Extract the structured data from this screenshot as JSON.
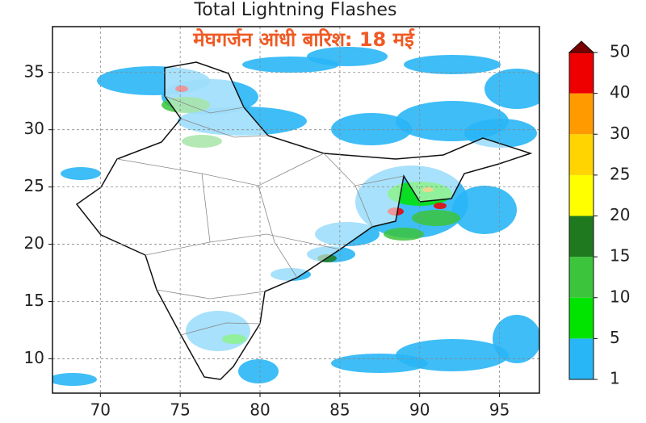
{
  "title": "Total Lightning Flashes",
  "annotation": "मेघगर्जन आंधी बारिश: 18 मई",
  "map": {
    "xlim": [
      67,
      97.5
    ],
    "ylim": [
      7,
      39
    ],
    "xticks": [
      70,
      75,
      80,
      85,
      90,
      95
    ],
    "yticks": [
      10,
      15,
      20,
      25,
      30,
      35
    ],
    "grid": true
  },
  "colorbar": {
    "levels": [
      1,
      5,
      10,
      15,
      20,
      25,
      30,
      40,
      50
    ],
    "colors": [
      "#29b6f6",
      "#00e400",
      "#3cc43c",
      "#1f7a1f",
      "#ffff00",
      "#ffd400",
      "#ff9a00",
      "#ee0000"
    ],
    "extend_color": "#7a0000"
  }
}
